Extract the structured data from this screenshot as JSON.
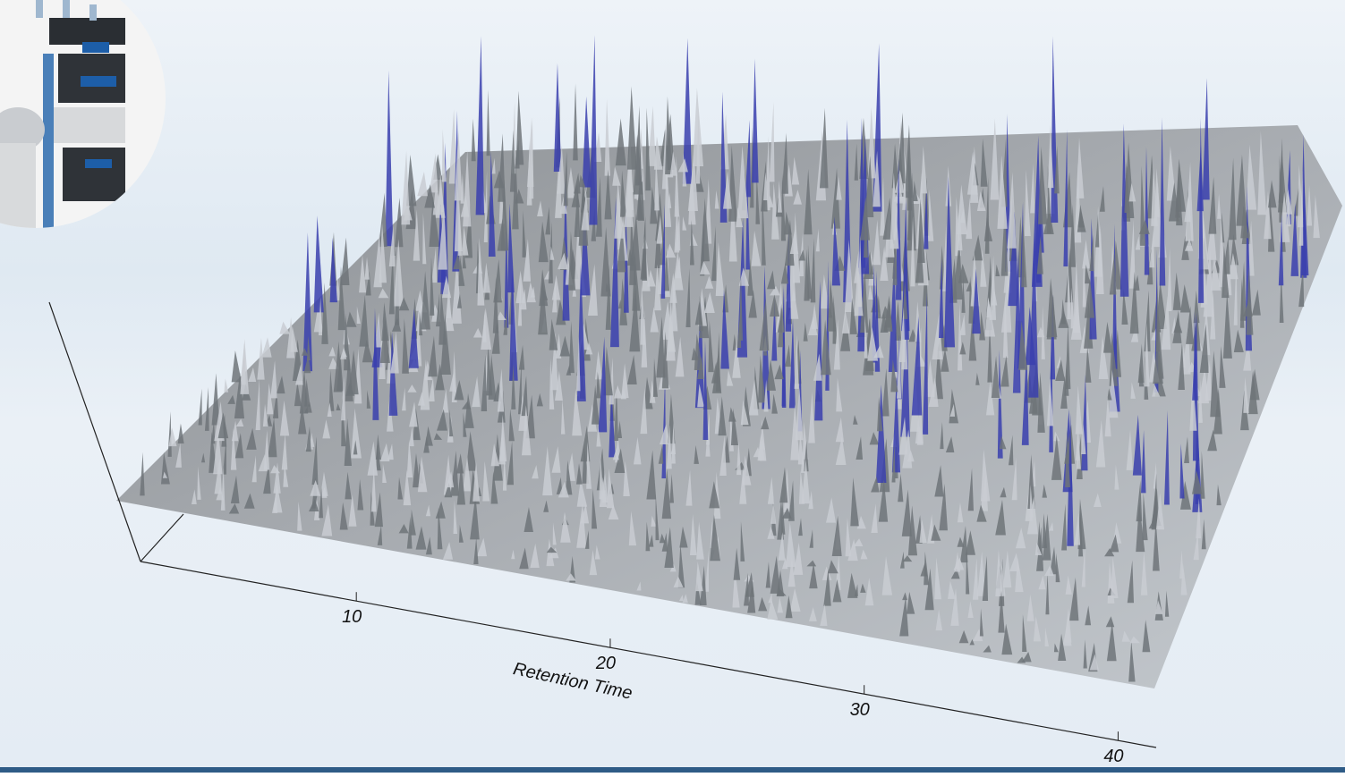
{
  "chart_data": {
    "type": "surface3d",
    "x_label": "Retention Time",
    "xlim": [
      1.5,
      41.5
    ],
    "xticks": [
      10,
      20,
      30,
      40
    ]
  }
}
